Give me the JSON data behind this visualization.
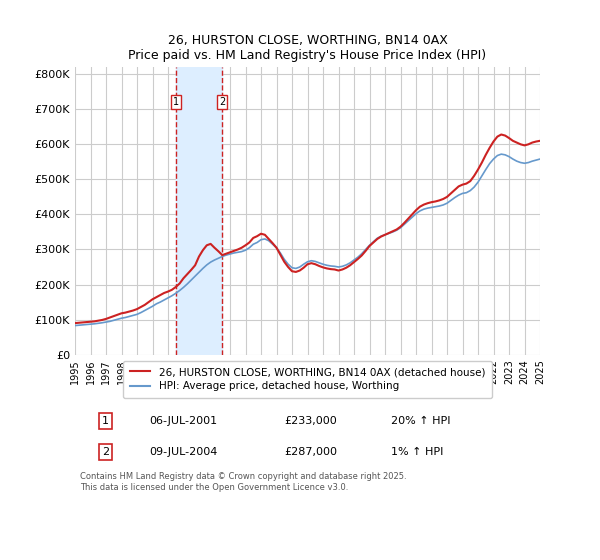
{
  "title": "26, HURSTON CLOSE, WORTHING, BN14 0AX",
  "subtitle": "Price paid vs. HM Land Registry's House Price Index (HPI)",
  "footer": "Contains HM Land Registry data © Crown copyright and database right 2025.\nThis data is licensed under the Open Government Licence v3.0.",
  "legend_line1": "26, HURSTON CLOSE, WORTHING, BN14 0AX (detached house)",
  "legend_line2": "HPI: Average price, detached house, Worthing",
  "sale1_label": "1",
  "sale1_date": "06-JUL-2001",
  "sale1_price": "£233,000",
  "sale1_hpi": "20% ↑ HPI",
  "sale2_label": "2",
  "sale2_date": "09-JUL-2004",
  "sale2_price": "£287,000",
  "sale2_hpi": "1% ↑ HPI",
  "sale1_year": 2001.5,
  "sale2_year": 2004.5,
  "shading_x1": 2001.5,
  "shading_x2": 2004.5,
  "x_start": 1995,
  "x_end": 2025,
  "y_ticks": [
    0,
    100000,
    200000,
    300000,
    400000,
    500000,
    600000,
    700000,
    800000
  ],
  "y_tick_labels": [
    "£0",
    "£100K",
    "£200K",
    "£300K",
    "£400K",
    "£500K",
    "£600K",
    "£700K",
    "£800K"
  ],
  "ylim": [
    0,
    820000
  ],
  "hpi_color": "#6699cc",
  "price_color": "#cc2222",
  "shading_color": "#ddeeff",
  "grid_color": "#cccccc",
  "background_color": "#ffffff",
  "sale_vline_color": "#cc2222",
  "hpi_data_x": [
    1995,
    1995.25,
    1995.5,
    1995.75,
    1996,
    1996.25,
    1996.5,
    1996.75,
    1997,
    1997.25,
    1997.5,
    1997.75,
    1998,
    1998.25,
    1998.5,
    1998.75,
    1999,
    1999.25,
    1999.5,
    1999.75,
    2000,
    2000.25,
    2000.5,
    2000.75,
    2001,
    2001.25,
    2001.5,
    2001.75,
    2002,
    2002.25,
    2002.5,
    2002.75,
    2003,
    2003.25,
    2003.5,
    2003.75,
    2004,
    2004.25,
    2004.5,
    2004.75,
    2005,
    2005.25,
    2005.5,
    2005.75,
    2006,
    2006.25,
    2006.5,
    2006.75,
    2007,
    2007.25,
    2007.5,
    2007.75,
    2008,
    2008.25,
    2008.5,
    2008.75,
    2009,
    2009.25,
    2009.5,
    2009.75,
    2010,
    2010.25,
    2010.5,
    2010.75,
    2011,
    2011.25,
    2011.5,
    2011.75,
    2012,
    2012.25,
    2012.5,
    2012.75,
    2013,
    2013.25,
    2013.5,
    2013.75,
    2014,
    2014.25,
    2014.5,
    2014.75,
    2015,
    2015.25,
    2015.5,
    2015.75,
    2016,
    2016.25,
    2016.5,
    2016.75,
    2017,
    2017.25,
    2017.5,
    2017.75,
    2018,
    2018.25,
    2018.5,
    2018.75,
    2019,
    2019.25,
    2019.5,
    2019.75,
    2020,
    2020.25,
    2020.5,
    2020.75,
    2021,
    2021.25,
    2021.5,
    2021.75,
    2022,
    2022.25,
    2022.5,
    2022.75,
    2023,
    2023.25,
    2023.5,
    2023.75,
    2024,
    2024.25,
    2024.5,
    2024.75,
    2025
  ],
  "hpi_data_y": [
    83000,
    84000,
    85000,
    86000,
    87000,
    88000,
    89500,
    91000,
    93000,
    95000,
    98000,
    101000,
    104000,
    106000,
    109000,
    112000,
    115000,
    120000,
    126000,
    132000,
    138000,
    145000,
    150000,
    156000,
    162000,
    168000,
    175000,
    183000,
    192000,
    202000,
    213000,
    224000,
    235000,
    246000,
    256000,
    264000,
    270000,
    275000,
    280000,
    284000,
    287000,
    290000,
    292000,
    294000,
    298000,
    305000,
    315000,
    320000,
    328000,
    330000,
    325000,
    315000,
    305000,
    290000,
    272000,
    258000,
    248000,
    246000,
    250000,
    258000,
    265000,
    268000,
    266000,
    262000,
    258000,
    255000,
    253000,
    252000,
    250000,
    252000,
    256000,
    262000,
    270000,
    278000,
    288000,
    300000,
    312000,
    322000,
    332000,
    338000,
    342000,
    346000,
    350000,
    355000,
    362000,
    372000,
    382000,
    392000,
    402000,
    410000,
    415000,
    418000,
    420000,
    422000,
    424000,
    427000,
    432000,
    440000,
    448000,
    455000,
    460000,
    462000,
    468000,
    478000,
    492000,
    510000,
    528000,
    545000,
    558000,
    568000,
    572000,
    570000,
    565000,
    558000,
    552000,
    548000,
    546000,
    548000,
    552000,
    555000,
    558000
  ],
  "price_data_x": [
    1995,
    1995.25,
    1995.5,
    1995.75,
    1996,
    1996.25,
    1996.5,
    1996.75,
    1997,
    1997.25,
    1997.5,
    1997.75,
    1998,
    1998.25,
    1998.5,
    1998.75,
    1999,
    1999.25,
    1999.5,
    1999.75,
    2000,
    2000.25,
    2000.5,
    2000.75,
    2001,
    2001.25,
    2001.5,
    2001.75,
    2002,
    2002.25,
    2002.5,
    2002.75,
    2003,
    2003.25,
    2003.5,
    2003.75,
    2004,
    2004.25,
    2004.5,
    2004.75,
    2005,
    2005.25,
    2005.5,
    2005.75,
    2006,
    2006.25,
    2006.5,
    2006.75,
    2007,
    2007.25,
    2007.5,
    2007.75,
    2008,
    2008.25,
    2008.5,
    2008.75,
    2009,
    2009.25,
    2009.5,
    2009.75,
    2010,
    2010.25,
    2010.5,
    2010.75,
    2011,
    2011.25,
    2011.5,
    2011.75,
    2012,
    2012.25,
    2012.5,
    2012.75,
    2013,
    2013.25,
    2013.5,
    2013.75,
    2014,
    2014.25,
    2014.5,
    2014.75,
    2015,
    2015.25,
    2015.5,
    2015.75,
    2016,
    2016.25,
    2016.5,
    2016.75,
    2017,
    2017.25,
    2017.5,
    2017.75,
    2018,
    2018.25,
    2018.5,
    2018.75,
    2019,
    2019.25,
    2019.5,
    2019.75,
    2020,
    2020.25,
    2020.5,
    2020.75,
    2021,
    2021.25,
    2021.5,
    2021.75,
    2022,
    2022.25,
    2022.5,
    2022.75,
    2023,
    2023.25,
    2023.5,
    2023.75,
    2024,
    2024.25,
    2024.5,
    2024.75,
    2025
  ],
  "price_data_y": [
    90000,
    91000,
    92000,
    93000,
    94000,
    95000,
    97000,
    99000,
    102000,
    106000,
    110000,
    114000,
    118000,
    120000,
    123000,
    126000,
    130000,
    136000,
    142000,
    150000,
    158000,
    164000,
    170000,
    176000,
    180000,
    185000,
    193000,
    203000,
    218000,
    230000,
    242000,
    255000,
    280000,
    298000,
    312000,
    316000,
    305000,
    295000,
    284000,
    288000,
    292000,
    296000,
    300000,
    305000,
    312000,
    320000,
    333000,
    338000,
    345000,
    342000,
    330000,
    318000,
    305000,
    285000,
    265000,
    250000,
    238000,
    236000,
    240000,
    248000,
    258000,
    261000,
    258000,
    253000,
    249000,
    246000,
    244000,
    243000,
    240000,
    243000,
    248000,
    255000,
    264000,
    273000,
    283000,
    296000,
    310000,
    320000,
    330000,
    337000,
    342000,
    347000,
    352000,
    357000,
    365000,
    376000,
    388000,
    400000,
    412000,
    422000,
    428000,
    432000,
    435000,
    437000,
    440000,
    444000,
    450000,
    460000,
    470000,
    480000,
    485000,
    488000,
    495000,
    510000,
    528000,
    548000,
    570000,
    590000,
    608000,
    622000,
    628000,
    625000,
    618000,
    610000,
    605000,
    600000,
    597000,
    600000,
    605000,
    608000,
    610000
  ],
  "x_tick_years": [
    1995,
    1996,
    1997,
    1998,
    1999,
    2000,
    2001,
    2002,
    2003,
    2004,
    2005,
    2006,
    2007,
    2008,
    2009,
    2010,
    2011,
    2012,
    2013,
    2014,
    2015,
    2016,
    2017,
    2018,
    2019,
    2020,
    2021,
    2022,
    2023,
    2024,
    2025
  ]
}
